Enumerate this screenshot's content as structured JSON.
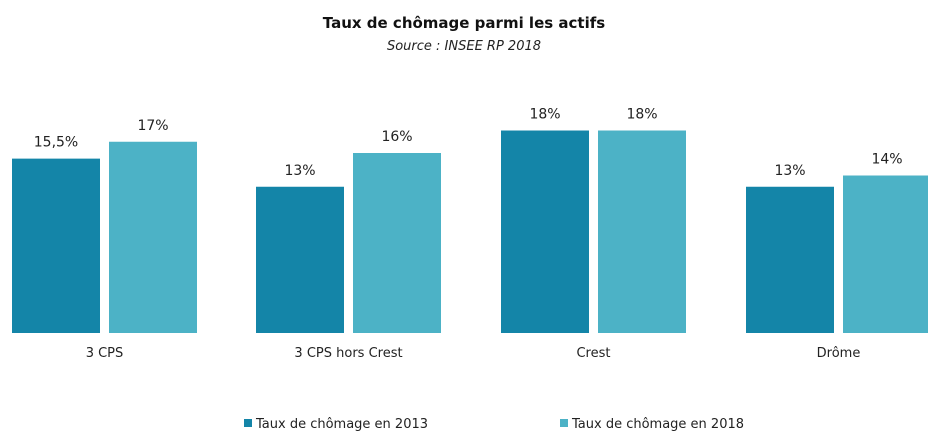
{
  "chart_data": {
    "type": "bar",
    "title": "Taux de chômage parmi les actifs",
    "subtitle": "Source : INSEE RP 2018",
    "categories": [
      "3 CPS",
      "3 CPS hors Crest",
      "Crest",
      "Drôme"
    ],
    "series": [
      {
        "name": "Taux de chômage en 2013",
        "values": [
          15.5,
          13,
          18,
          13
        ],
        "labels": [
          "15,5%",
          "13%",
          "18%",
          "13%"
        ],
        "color": "#1485A8"
      },
      {
        "name": "Taux de chômage en 2018",
        "values": [
          17,
          16,
          18,
          14
        ],
        "labels": [
          "17%",
          "16%",
          "18%",
          "14%"
        ],
        "color": "#4CB2C6"
      }
    ],
    "ylim": [
      0,
      20
    ],
    "grid": false,
    "legend_position": "bottom",
    "xlabel": "",
    "ylabel": ""
  }
}
